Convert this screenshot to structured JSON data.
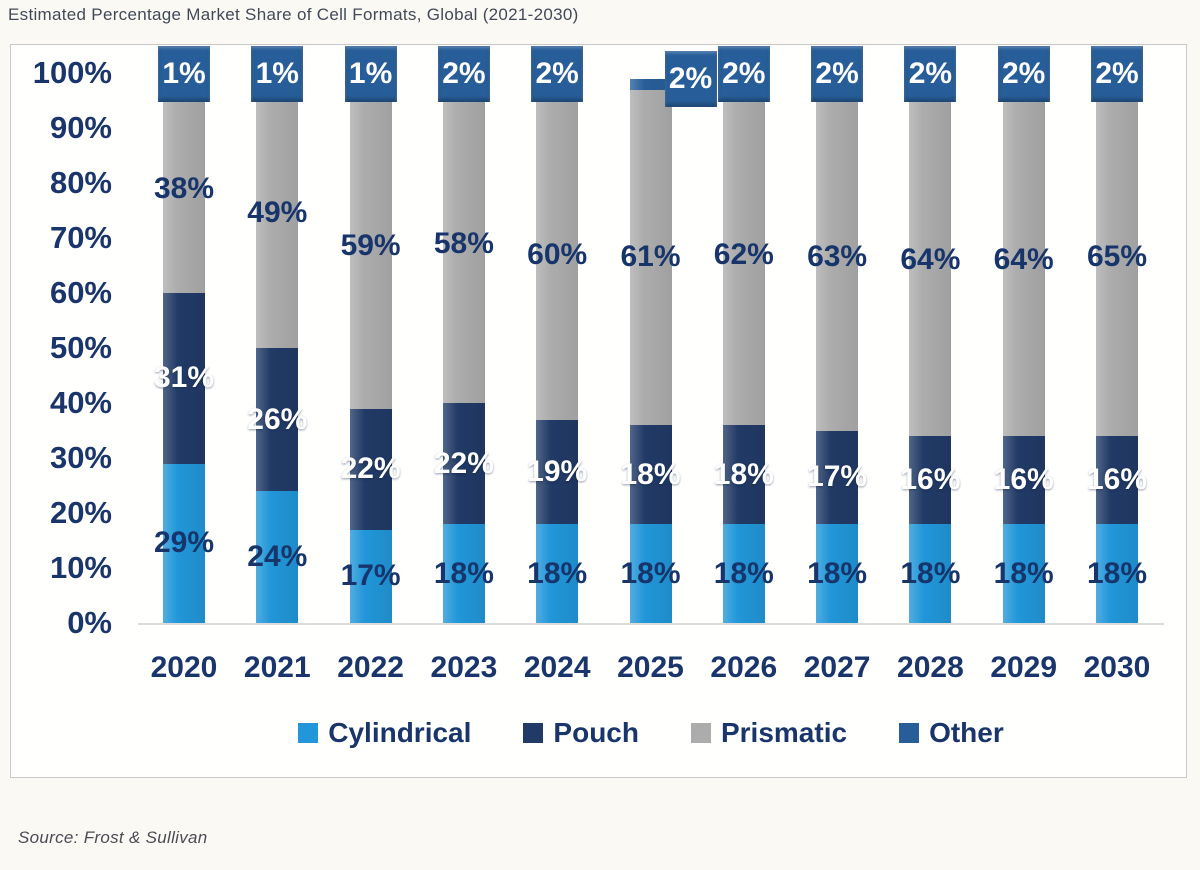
{
  "title": "Estimated Percentage Market Share of Cell Formats, Global (2021-2030)",
  "source": "Source: Frost & Sullivan",
  "chart_data": {
    "type": "bar",
    "stacked": true,
    "title": "Estimated Percentage Market Share of Cell Formats, Global (2021-2030)",
    "categories": [
      "2020",
      "2021",
      "2022",
      "2023",
      "2024",
      "2025",
      "2026",
      "2027",
      "2028",
      "2029",
      "2030"
    ],
    "series": [
      {
        "name": "Cylindrical",
        "color": "#2196d8",
        "label_color": "#17356b",
        "values": [
          29,
          24,
          17,
          18,
          18,
          18,
          18,
          18,
          18,
          18,
          18
        ]
      },
      {
        "name": "Pouch",
        "color": "#213a66",
        "label_color": "#ffffff",
        "values": [
          31,
          26,
          22,
          22,
          19,
          18,
          18,
          17,
          16,
          16,
          16
        ]
      },
      {
        "name": "Prismatic",
        "color": "#acacac",
        "label_color": "#17356b",
        "values": [
          38,
          49,
          59,
          58,
          60,
          61,
          62,
          63,
          64,
          64,
          65
        ]
      },
      {
        "name": "Other",
        "color": "#275e99",
        "label_color": "#ffffff",
        "label_style": "boxed",
        "values": [
          1,
          1,
          1,
          2,
          2,
          2,
          2,
          2,
          2,
          2,
          2
        ]
      }
    ],
    "xlabel": "",
    "ylabel": "",
    "ylim": [
      0,
      100
    ],
    "y_ticks": [
      "100%",
      "90%",
      "80%",
      "70%",
      "60%",
      "50%",
      "40%",
      "30%",
      "20%",
      "10%",
      "0%"
    ],
    "grid": false,
    "legend_position": "bottom",
    "data_labels": "center",
    "other_label_offsets": {
      "2025": {
        "dx": 40,
        "dy": 5
      }
    }
  }
}
